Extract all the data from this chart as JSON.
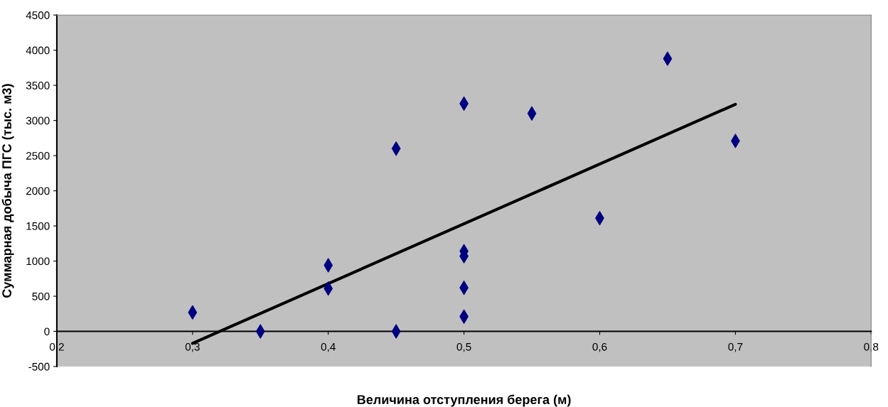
{
  "chart_data": {
    "type": "scatter",
    "xlabel": "Величина отступления берега (м)",
    "ylabel": "Суммарная добыча ПГС (тыс. м3)",
    "xlim": [
      0.2,
      0.8
    ],
    "ylim": [
      -500,
      4500
    ],
    "xticks": [
      {
        "value": 0.2,
        "label": "0,2"
      },
      {
        "value": 0.3,
        "label": "0,3"
      },
      {
        "value": 0.4,
        "label": "0,4"
      },
      {
        "value": 0.5,
        "label": "0,5"
      },
      {
        "value": 0.6,
        "label": "0,6"
      },
      {
        "value": 0.7,
        "label": "0,7"
      },
      {
        "value": 0.8,
        "label": "0,8"
      }
    ],
    "yticks": [
      -500,
      0,
      500,
      1000,
      1500,
      2000,
      2500,
      3000,
      3500,
      4000,
      4500
    ],
    "grid": false,
    "series": [
      {
        "marker": "diamond",
        "color": "#000080",
        "x": [
          0.3,
          0.35,
          0.4,
          0.4,
          0.45,
          0.45,
          0.5,
          0.5,
          0.5,
          0.5,
          0.5,
          0.55,
          0.6,
          0.65,
          0.7
        ],
        "values": [
          270,
          0,
          940,
          610,
          2600,
          0,
          3240,
          1140,
          1070,
          620,
          210,
          3100,
          1610,
          3880,
          2710
        ]
      },
      {
        "type": "line",
        "color": "#000000",
        "line_style": "solid",
        "x": [
          0.3,
          0.7
        ],
        "values": [
          -170,
          3230
        ]
      }
    ]
  }
}
